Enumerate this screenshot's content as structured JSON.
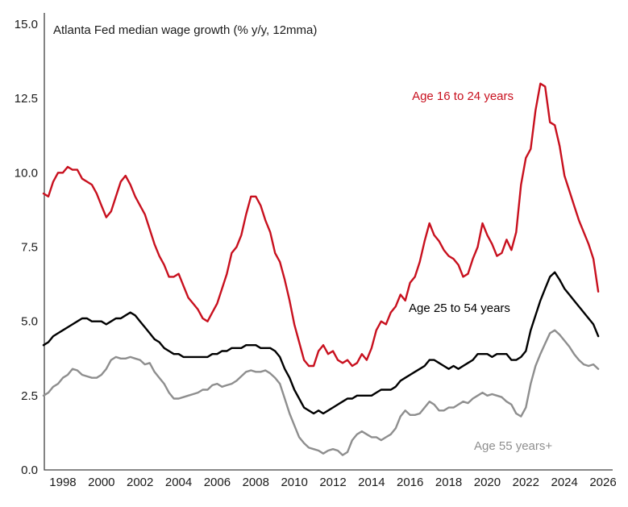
{
  "chart_data": {
    "type": "line",
    "title": "Atlanta Fed median wage growth (% y/y, 12mma)",
    "xlabel": "",
    "ylabel": "",
    "grid": false,
    "legend_position": "inline-annotations",
    "xlim": [
      1997.04,
      2026.5
    ],
    "ylim": [
      0,
      15
    ],
    "x_ticks": [
      1998,
      2000,
      2002,
      2004,
      2006,
      2008,
      2010,
      2012,
      2014,
      2016,
      2018,
      2020,
      2022,
      2024,
      2026
    ],
    "y_ticks": [
      {
        "value": 0,
        "label": "0.0"
      },
      {
        "value": 2.5,
        "label": "2.5"
      },
      {
        "value": 5,
        "label": "5.0"
      },
      {
        "value": 7.5,
        "label": "7.5"
      },
      {
        "value": 10,
        "label": "10.0"
      },
      {
        "value": 12.5,
        "label": "12.5"
      },
      {
        "value": 15,
        "label": "15.0"
      }
    ],
    "x": [
      1997,
      1997.25,
      1997.5,
      1997.75,
      1998,
      1998.25,
      1998.5,
      1998.75,
      1999,
      1999.25,
      1999.5,
      1999.75,
      2000,
      2000.25,
      2000.5,
      2000.75,
      2001,
      2001.25,
      2001.5,
      2001.75,
      2002,
      2002.25,
      2002.5,
      2002.75,
      2003,
      2003.25,
      2003.5,
      2003.75,
      2004,
      2004.25,
      2004.5,
      2004.75,
      2005,
      2005.25,
      2005.5,
      2005.75,
      2006,
      2006.25,
      2006.5,
      2006.75,
      2007,
      2007.25,
      2007.5,
      2007.75,
      2008,
      2008.25,
      2008.5,
      2008.75,
      2009,
      2009.25,
      2009.5,
      2009.75,
      2010,
      2010.25,
      2010.5,
      2010.75,
      2011,
      2011.25,
      2011.5,
      2011.75,
      2012,
      2012.25,
      2012.5,
      2012.75,
      2013,
      2013.25,
      2013.5,
      2013.75,
      2014,
      2014.25,
      2014.5,
      2014.75,
      2015,
      2015.25,
      2015.5,
      2015.75,
      2016,
      2016.25,
      2016.5,
      2016.75,
      2017,
      2017.25,
      2017.5,
      2017.75,
      2018,
      2018.25,
      2018.5,
      2018.75,
      2019,
      2019.25,
      2019.5,
      2019.75,
      2020,
      2020.25,
      2020.5,
      2020.75,
      2021,
      2021.25,
      2021.5,
      2021.75,
      2022,
      2022.25,
      2022.5,
      2022.75,
      2023,
      2023.25,
      2023.5,
      2023.75,
      2024,
      2024.25,
      2024.5,
      2024.75,
      2025,
      2025.25,
      2025.5,
      2025.75
    ],
    "series": [
      {
        "name": "Age 55 years+",
        "color": "#8e8e8e",
        "values": [
          2.5,
          2.6,
          2.8,
          2.9,
          3.1,
          3.2,
          3.4,
          3.35,
          3.2,
          3.15,
          3.1,
          3.1,
          3.2,
          3.4,
          3.7,
          3.8,
          3.75,
          3.75,
          3.8,
          3.75,
          3.7,
          3.55,
          3.6,
          3.3,
          3.1,
          2.9,
          2.6,
          2.4,
          2.4,
          2.45,
          2.5,
          2.55,
          2.6,
          2.7,
          2.7,
          2.85,
          2.9,
          2.8,
          2.85,
          2.9,
          3.0,
          3.15,
          3.3,
          3.35,
          3.3,
          3.3,
          3.35,
          3.25,
          3.1,
          2.9,
          2.4,
          1.9,
          1.5,
          1.1,
          0.9,
          0.75,
          0.7,
          0.65,
          0.55,
          0.65,
          0.7,
          0.65,
          0.5,
          0.6,
          1.0,
          1.2,
          1.3,
          1.2,
          1.1,
          1.1,
          1.0,
          1.1,
          1.2,
          1.4,
          1.8,
          2.0,
          1.85,
          1.85,
          1.9,
          2.1,
          2.3,
          2.2,
          2.0,
          2.0,
          2.1,
          2.1,
          2.2,
          2.3,
          2.25,
          2.4,
          2.5,
          2.6,
          2.5,
          2.55,
          2.5,
          2.45,
          2.3,
          2.2,
          1.9,
          1.8,
          2.1,
          2.9,
          3.5,
          3.9,
          4.25,
          4.6,
          4.7,
          4.55,
          4.35,
          4.15,
          3.9,
          3.7,
          3.55,
          3.5,
          3.55,
          3.4
        ]
      },
      {
        "name": "Age 25 to 54 years",
        "color": "#000000",
        "values": [
          4.2,
          4.3,
          4.5,
          4.6,
          4.7,
          4.8,
          4.9,
          5.0,
          5.1,
          5.1,
          5.0,
          5.0,
          5.0,
          4.9,
          5.0,
          5.1,
          5.1,
          5.2,
          5.3,
          5.2,
          5.0,
          4.8,
          4.6,
          4.4,
          4.3,
          4.1,
          4.0,
          3.9,
          3.9,
          3.8,
          3.8,
          3.8,
          3.8,
          3.8,
          3.8,
          3.9,
          3.9,
          4.0,
          4.0,
          4.1,
          4.1,
          4.1,
          4.2,
          4.2,
          4.2,
          4.1,
          4.1,
          4.1,
          4.0,
          3.8,
          3.4,
          3.1,
          2.7,
          2.4,
          2.1,
          2.0,
          1.9,
          2.0,
          1.9,
          2.0,
          2.1,
          2.2,
          2.3,
          2.4,
          2.4,
          2.5,
          2.5,
          2.5,
          2.5,
          2.6,
          2.7,
          2.7,
          2.7,
          2.8,
          3.0,
          3.1,
          3.2,
          3.3,
          3.4,
          3.5,
          3.7,
          3.7,
          3.6,
          3.5,
          3.4,
          3.5,
          3.4,
          3.5,
          3.6,
          3.7,
          3.9,
          3.9,
          3.9,
          3.8,
          3.9,
          3.9,
          3.9,
          3.7,
          3.7,
          3.8,
          4.0,
          4.7,
          5.2,
          5.7,
          6.1,
          6.5,
          6.65,
          6.4,
          6.1,
          5.9,
          5.7,
          5.5,
          5.3,
          5.1,
          4.9,
          4.5
        ]
      },
      {
        "name": "Age 16 to 24 years",
        "color": "#c8101e",
        "values": [
          9.3,
          9.2,
          9.7,
          10.0,
          10.0,
          10.2,
          10.1,
          10.1,
          9.8,
          9.7,
          9.6,
          9.3,
          8.9,
          8.5,
          8.7,
          9.2,
          9.7,
          9.9,
          9.6,
          9.2,
          8.9,
          8.6,
          8.1,
          7.6,
          7.2,
          6.9,
          6.5,
          6.5,
          6.6,
          6.2,
          5.8,
          5.6,
          5.4,
          5.1,
          5.0,
          5.3,
          5.6,
          6.1,
          6.6,
          7.3,
          7.5,
          7.9,
          8.6,
          9.2,
          9.2,
          8.9,
          8.4,
          8.0,
          7.3,
          7.0,
          6.4,
          5.7,
          4.9,
          4.3,
          3.7,
          3.5,
          3.5,
          4.0,
          4.2,
          3.9,
          4.0,
          3.7,
          3.6,
          3.7,
          3.5,
          3.6,
          3.9,
          3.7,
          4.1,
          4.7,
          5.0,
          4.9,
          5.3,
          5.5,
          5.9,
          5.7,
          6.3,
          6.5,
          7.0,
          7.7,
          8.3,
          7.9,
          7.7,
          7.4,
          7.2,
          7.1,
          6.9,
          6.5,
          6.6,
          7.1,
          7.5,
          8.3,
          7.9,
          7.6,
          7.2,
          7.3,
          7.75,
          7.4,
          8.0,
          9.6,
          10.5,
          10.8,
          12.1,
          13.0,
          12.9,
          11.7,
          11.6,
          10.9,
          9.9,
          9.4,
          8.9,
          8.4,
          8.0,
          7.6,
          7.1,
          6.0
        ]
      }
    ],
    "annotations": [
      {
        "text": "Age 16 to 24 years",
        "series": 2
      },
      {
        "text": "Age 25 to 54 years",
        "series": 1
      },
      {
        "text": "Age 55 years+",
        "series": 0
      }
    ]
  }
}
